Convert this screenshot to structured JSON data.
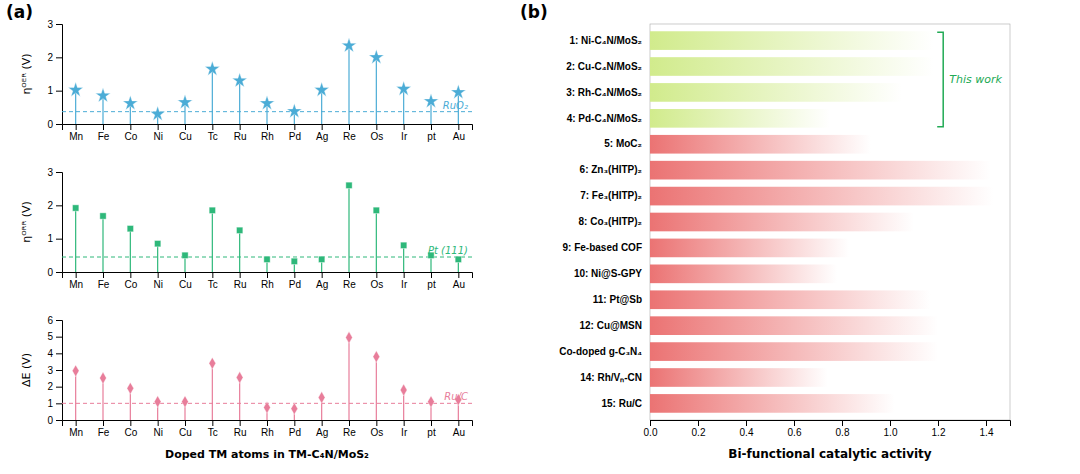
{
  "chart_data": [
    {
      "type": "lollipop",
      "title": "(a)",
      "categories": [
        "Mn",
        "Fe",
        "Co",
        "Ni",
        "Cu",
        "Tc",
        "Ru",
        "Rh",
        "Pd",
        "Ag",
        "Re",
        "Os",
        "Ir",
        "pt",
        "Au"
      ],
      "values": [
        1.02,
        0.85,
        0.62,
        0.3,
        0.65,
        1.65,
        1.3,
        0.62,
        0.38,
        1.02,
        2.35,
        2.0,
        1.05,
        0.68,
        0.95
      ],
      "color": "#4bacd6",
      "marker": "star",
      "ylabel": "ηᴼᴱᴿ (V)",
      "ref_line": {
        "value": 0.37,
        "label": "RuO₂"
      },
      "ylim": [
        0,
        3
      ],
      "yticks": [
        0,
        1,
        2,
        3
      ]
    },
    {
      "type": "lollipop",
      "categories": [
        "Mn",
        "Fe",
        "Co",
        "Ni",
        "Cu",
        "Tc",
        "Ru",
        "Rh",
        "Pd",
        "Ag",
        "Re",
        "Os",
        "Ir",
        "pt",
        "Au"
      ],
      "values": [
        1.92,
        1.68,
        1.3,
        0.85,
        0.5,
        1.85,
        1.25,
        0.38,
        0.32,
        0.38,
        2.6,
        1.85,
        0.8,
        0.5,
        0.38
      ],
      "color": "#2eb87a",
      "marker": "square",
      "ylabel": "ηᴼᴿᴿ (V)",
      "ref_line": {
        "value": 0.45,
        "label": "Pt (111)"
      },
      "ylim": [
        0,
        3
      ],
      "yticks": [
        0,
        1,
        2,
        3
      ]
    },
    {
      "type": "lollipop",
      "categories": [
        "Mn",
        "Fe",
        "Co",
        "Ni",
        "Cu",
        "Tc",
        "Ru",
        "Rh",
        "Pd",
        "Ag",
        "Re",
        "Os",
        "Ir",
        "pt",
        "Au"
      ],
      "values": [
        2.95,
        2.52,
        1.9,
        1.1,
        1.1,
        3.4,
        2.55,
        0.75,
        0.68,
        1.35,
        4.95,
        3.8,
        1.8,
        1.1,
        1.22
      ],
      "color": "#e87d9a",
      "marker": "diamond",
      "ylabel": "ΔE (V)",
      "xlabel": "Doped TM atoms in TM-C₄N/MoS₂",
      "ref_line": {
        "value": 1.0,
        "label": "Ru/C"
      },
      "ylim": [
        0,
        6
      ],
      "yticks": [
        0,
        1,
        2,
        3,
        4,
        5,
        6
      ]
    },
    {
      "type": "bar",
      "orientation": "horizontal",
      "title": "(b)",
      "categories": [
        "1: Ni-C₄N/MoS₂",
        "2: Cu-C₄N/MoS₂",
        "3: Rh-C₄N/MoS₂",
        "4: Pd-C₄N/MoS₂",
        "5: MoC₂",
        "6: Zn₃(HITP)₂",
        "7: Fe₃(HITP)₂",
        "8: Co₃(HITP)₂",
        "9: Fe-based COF",
        "10: Ni@S-GPY",
        "11: Pt@Sb",
        "12: Cu@MSN",
        "Co-doped g-C₃N₄",
        "14: Rh/Vₙ-CN",
        "15: Ru/C"
      ],
      "values": [
        1.18,
        1.18,
        1.05,
        0.75,
        0.92,
        1.42,
        1.43,
        1.1,
        0.83,
        0.78,
        1.17,
        1.2,
        1.2,
        0.74,
        1.02
      ],
      "this_work": [
        true,
        true,
        true,
        true,
        false,
        false,
        false,
        false,
        false,
        false,
        false,
        false,
        false,
        false,
        false
      ],
      "colors": [
        "#d1eb8c",
        "#d1eb8c",
        "#d1eb8c",
        "#d1eb8c",
        "#eb7373",
        "#eb7373",
        "#eb7373",
        "#eb7373",
        "#eb7373",
        "#eb7373",
        "#eb7373",
        "#eb7373",
        "#eb7373",
        "#eb7373",
        "#eb7373"
      ],
      "annotations": [
        {
          "text": "This work",
          "color": "#22aa55"
        }
      ],
      "xlabel": "Bi-functional catalytic activity",
      "xlim": [
        0,
        1.5
      ],
      "xticks": [
        {
          "value": 0,
          "label": "0.0"
        },
        0.2,
        0.4,
        0.6,
        0.8,
        {
          "value": 1,
          "label": "1.0"
        },
        1.2,
        1.4
      ]
    }
  ]
}
